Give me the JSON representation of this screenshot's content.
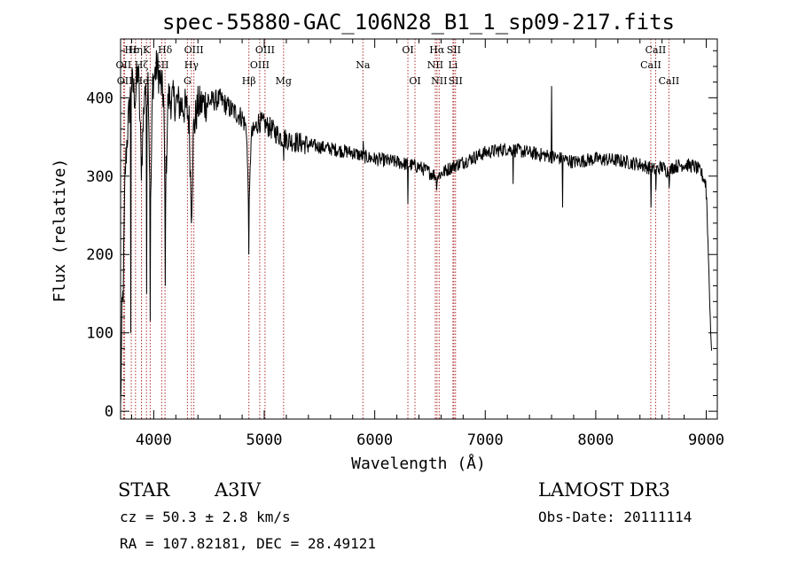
{
  "chart_data": {
    "type": "line",
    "title": "spec-55880-GAC_106N28_B1_1_sp09-217.fits",
    "xlabel": "Wavelength (Å)",
    "ylabel": "Flux (relative)",
    "xlim": [
      3700,
      9100
    ],
    "ylim": [
      -10,
      475
    ],
    "x_ticks": [
      4000,
      5000,
      6000,
      7000,
      8000,
      9000
    ],
    "y_ticks": [
      0,
      100,
      200,
      300,
      400
    ],
    "spectrum_anchors": [
      [
        3700,
        0
      ],
      [
        3712,
        120
      ],
      [
        3725,
        160
      ],
      [
        3740,
        300
      ],
      [
        3755,
        340
      ],
      [
        3770,
        370
      ],
      [
        3798,
        420
      ],
      [
        3835,
        400
      ],
      [
        3860,
        440
      ],
      [
        3889,
        310
      ],
      [
        3920,
        420
      ],
      [
        3933,
        380
      ],
      [
        3950,
        430
      ],
      [
        3970,
        240
      ],
      [
        3990,
        420
      ],
      [
        4030,
        440
      ],
      [
        4060,
        420
      ],
      [
        4090,
        400
      ],
      [
        4102,
        250
      ],
      [
        4130,
        400
      ],
      [
        4200,
        395
      ],
      [
        4260,
        390
      ],
      [
        4300,
        385
      ],
      [
        4320,
        370
      ],
      [
        4341,
        250
      ],
      [
        4360,
        360
      ],
      [
        4400,
        390
      ],
      [
        4500,
        395
      ],
      [
        4600,
        398
      ],
      [
        4700,
        385
      ],
      [
        4800,
        375
      ],
      [
        4840,
        360
      ],
      [
        4861,
        240
      ],
      [
        4880,
        350
      ],
      [
        4950,
        370
      ],
      [
        5050,
        362
      ],
      [
        5150,
        350
      ],
      [
        5250,
        345
      ],
      [
        5400,
        340
      ],
      [
        5600,
        335
      ],
      [
        5800,
        330
      ],
      [
        5900,
        325
      ],
      [
        6000,
        322
      ],
      [
        6200,
        318
      ],
      [
        6400,
        312
      ],
      [
        6563,
        300
      ],
      [
        6700,
        312
      ],
      [
        6800,
        318
      ],
      [
        7000,
        330
      ],
      [
        7200,
        335
      ],
      [
        7400,
        330
      ],
      [
        7600,
        325
      ],
      [
        7700,
        322
      ],
      [
        7800,
        318
      ],
      [
        8000,
        322
      ],
      [
        8200,
        320
      ],
      [
        8400,
        315
      ],
      [
        8500,
        310
      ],
      [
        8542,
        308
      ],
      [
        8600,
        312
      ],
      [
        8662,
        305
      ],
      [
        8700,
        312
      ],
      [
        8800,
        315
      ],
      [
        8900,
        312
      ],
      [
        8950,
        305
      ],
      [
        9000,
        290
      ],
      [
        9030,
        150
      ],
      [
        9050,
        60
      ]
    ],
    "spikes": [
      {
        "x": 3790,
        "y": 100
      },
      {
        "x": 3935,
        "y": 150
      },
      {
        "x": 3968,
        "y": 115
      },
      {
        "x": 4102,
        "y": 160
      },
      {
        "x": 4340,
        "y": 240
      },
      {
        "x": 4861,
        "y": 200
      },
      {
        "x": 5175,
        "y": 320
      },
      {
        "x": 5895,
        "y": 345
      },
      {
        "x": 7250,
        "y": 290
      },
      {
        "x": 7600,
        "y": 415
      },
      {
        "x": 7700,
        "y": 260
      },
      {
        "x": 8500,
        "y": 260
      },
      {
        "x": 8545,
        "y": 282
      },
      {
        "x": 8665,
        "y": 285
      },
      {
        "x": 9000,
        "y": 270
      },
      {
        "x": 6300,
        "y": 265
      },
      {
        "x": 6560,
        "y": 282
      }
    ],
    "lines": [
      {
        "label": "Hε",
        "x": 3797,
        "row": 0
      },
      {
        "label": "OII",
        "x": 3727,
        "row": 1
      },
      {
        "label": "OII",
        "x": 3737,
        "row": 2
      },
      {
        "label": "Hη",
        "x": 3835,
        "row": 0
      },
      {
        "label": "Hζ",
        "x": 3889,
        "row": 1
      },
      {
        "label": "He",
        "x": 3889,
        "row": 2
      },
      {
        "label": "K",
        "x": 3934,
        "row": 0
      },
      {
        "label": "H",
        "x": 3968,
        "row": 2
      },
      {
        "label": "Hδ",
        "x": 4102,
        "row": 0
      },
      {
        "label": "SII",
        "x": 4072,
        "row": 1
      },
      {
        "label": "OIII",
        "x": 4363,
        "row": 0
      },
      {
        "label": "Hγ",
        "x": 4341,
        "row": 1
      },
      {
        "label": "G",
        "x": 4305,
        "row": 2
      },
      {
        "label": "Hβ",
        "x": 4861,
        "row": 2
      },
      {
        "label": "OIII",
        "x": 5007,
        "row": 0
      },
      {
        "label": "OIII",
        "x": 4959,
        "row": 1
      },
      {
        "label": "Mg",
        "x": 5175,
        "row": 2
      },
      {
        "label": "Na",
        "x": 5893,
        "row": 1
      },
      {
        "label": "OI",
        "x": 6300,
        "row": 0
      },
      {
        "label": "OI",
        "x": 6364,
        "row": 2
      },
      {
        "label": "Hα",
        "x": 6563,
        "row": 0
      },
      {
        "label": "NII",
        "x": 6548,
        "row": 1
      },
      {
        "label": "NII",
        "x": 6583,
        "row": 2
      },
      {
        "label": "SII",
        "x": 6716,
        "row": 0
      },
      {
        "label": "Li",
        "x": 6708,
        "row": 1
      },
      {
        "label": "SII",
        "x": 6731,
        "row": 2
      },
      {
        "label": "CaII",
        "x": 8542,
        "row": 0
      },
      {
        "label": "CaII",
        "x": 8498,
        "row": 1
      },
      {
        "label": "CaII",
        "x": 8662,
        "row": 2
      }
    ]
  },
  "info": {
    "class": "STAR",
    "subclass": "A3IV",
    "survey": "LAMOST DR3",
    "cz": "cz = 50.3 ± 2.8 km/s",
    "obs_date": "Obs-Date: 20111114",
    "coords": "RA = 107.82181, DEC =  28.49121"
  },
  "colors": {
    "spectrum": "#000000",
    "line_marker": "#b03030"
  }
}
